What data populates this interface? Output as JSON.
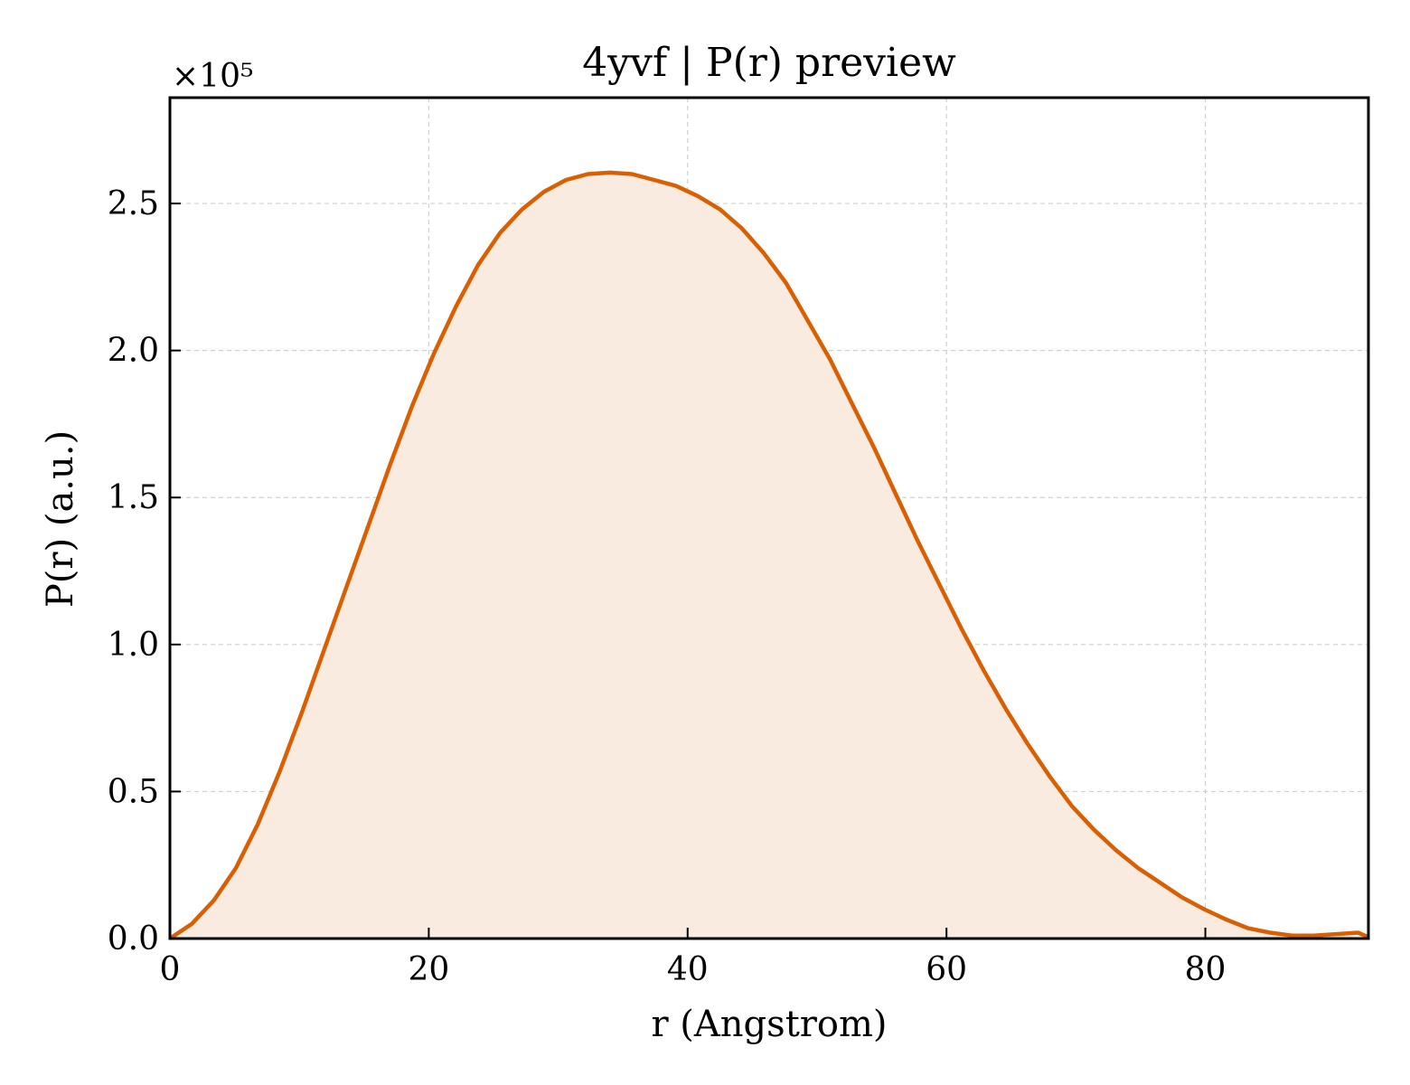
{
  "chart_data": {
    "type": "area",
    "title": "4yvf | P(r) preview",
    "xlabel": "r (Angstrom)",
    "ylabel": "P(r) (a.u.)",
    "y_scale_label": "×10⁵",
    "y_scale_factor": 100000,
    "xlim": [
      0,
      92.6
    ],
    "ylim": [
      0,
      2.86
    ],
    "xticks": [
      0,
      20,
      40,
      60,
      80
    ],
    "xtick_labels": [
      "0",
      "20",
      "40",
      "60",
      "80"
    ],
    "yticks": [
      0.0,
      0.5,
      1.0,
      1.5,
      2.0,
      2.5
    ],
    "ytick_labels": [
      "0.0",
      "0.5",
      "1.0",
      "1.5",
      "2.0",
      "2.5"
    ],
    "grid": true,
    "line_color": "#d95f02",
    "fill_color": "#f9ebe0",
    "series": [
      {
        "x": [
          0,
          1.7,
          3.4,
          5.1,
          6.8,
          8.5,
          10.2,
          11.9,
          13.6,
          15.3,
          17.0,
          18.7,
          20.4,
          22.1,
          23.8,
          25.5,
          27.2,
          28.9,
          30.6,
          32.3,
          34.0,
          35.7,
          37.4,
          39.1,
          40.8,
          42.5,
          44.2,
          45.9,
          47.6,
          49.3,
          51.0,
          52.7,
          54.4,
          56.1,
          57.8,
          59.5,
          61.2,
          62.9,
          64.6,
          66.3,
          68.0,
          69.7,
          71.4,
          73.1,
          74.8,
          76.5,
          78.2,
          79.9,
          81.6,
          83.3,
          85.0,
          86.7,
          88.4,
          90.1,
          91.8,
          92.6
        ],
        "y": [
          0.0,
          0.05,
          0.13,
          0.24,
          0.39,
          0.57,
          0.77,
          0.98,
          1.19,
          1.4,
          1.61,
          1.81,
          1.99,
          2.15,
          2.29,
          2.4,
          2.48,
          2.54,
          2.58,
          2.6,
          2.605,
          2.6,
          2.58,
          2.56,
          2.525,
          2.48,
          2.415,
          2.33,
          2.23,
          2.1,
          1.97,
          1.82,
          1.67,
          1.51,
          1.35,
          1.2,
          1.05,
          0.91,
          0.78,
          0.66,
          0.55,
          0.45,
          0.37,
          0.3,
          0.24,
          0.19,
          0.14,
          0.1,
          0.065,
          0.035,
          0.02,
          0.01,
          0.01,
          0.015,
          0.02,
          0.005
        ]
      }
    ]
  }
}
